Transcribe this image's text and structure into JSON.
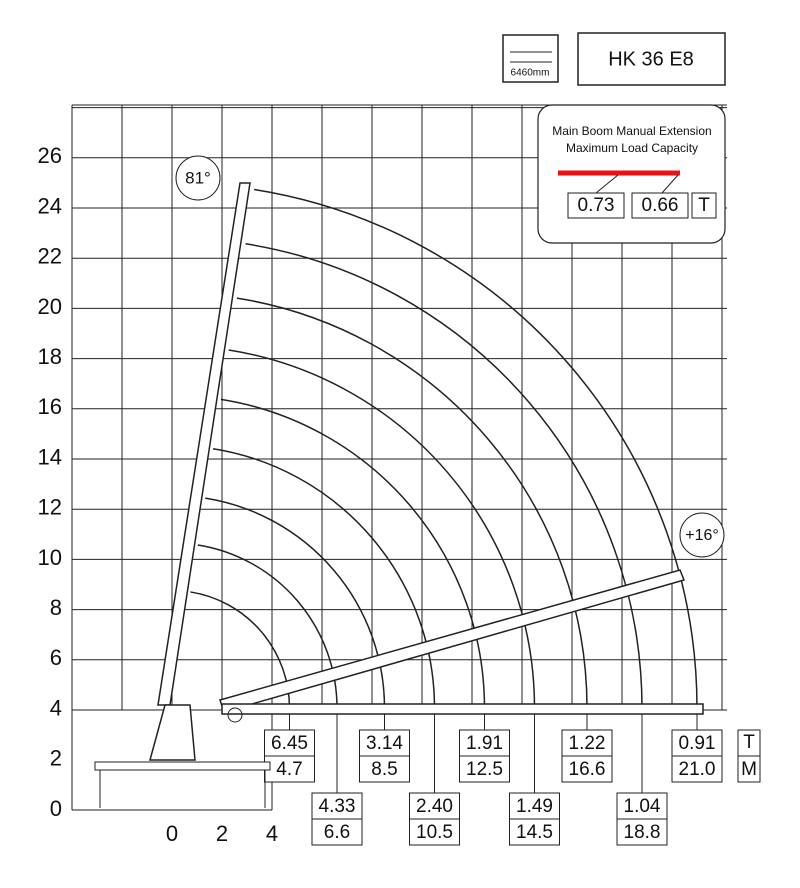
{
  "header": {
    "reach_icon_label": "6460mm",
    "model": "HK 36 E8"
  },
  "axes": {
    "y_labels": [
      "0",
      "2",
      "4",
      "6",
      "8",
      "10",
      "12",
      "14",
      "16",
      "18",
      "20",
      "22",
      "24",
      "26"
    ],
    "x_labels": [
      "0",
      "2",
      "4"
    ]
  },
  "angles": {
    "max": "81°",
    "min": "+16°"
  },
  "extension_box": {
    "title_lines": [
      "Main Boom Manual Extension",
      "Maximum Load Capacity"
    ],
    "capacities": [
      "0.73",
      "0.66"
    ],
    "unit": "T"
  },
  "load_table": {
    "columns": [
      {
        "load": "6.45",
        "reach": "4.7"
      },
      {
        "load": "4.33",
        "reach": "6.6"
      },
      {
        "load": "3.14",
        "reach": "8.5"
      },
      {
        "load": "2.40",
        "reach": "10.5"
      },
      {
        "load": "1.91",
        "reach": "12.5"
      },
      {
        "load": "1.49",
        "reach": "14.5"
      },
      {
        "load": "1.22",
        "reach": "16.6"
      },
      {
        "load": "1.04",
        "reach": "18.8"
      },
      {
        "load": "0.91",
        "reach": "21.0"
      }
    ],
    "load_unit": "T",
    "reach_unit": "M"
  }
}
